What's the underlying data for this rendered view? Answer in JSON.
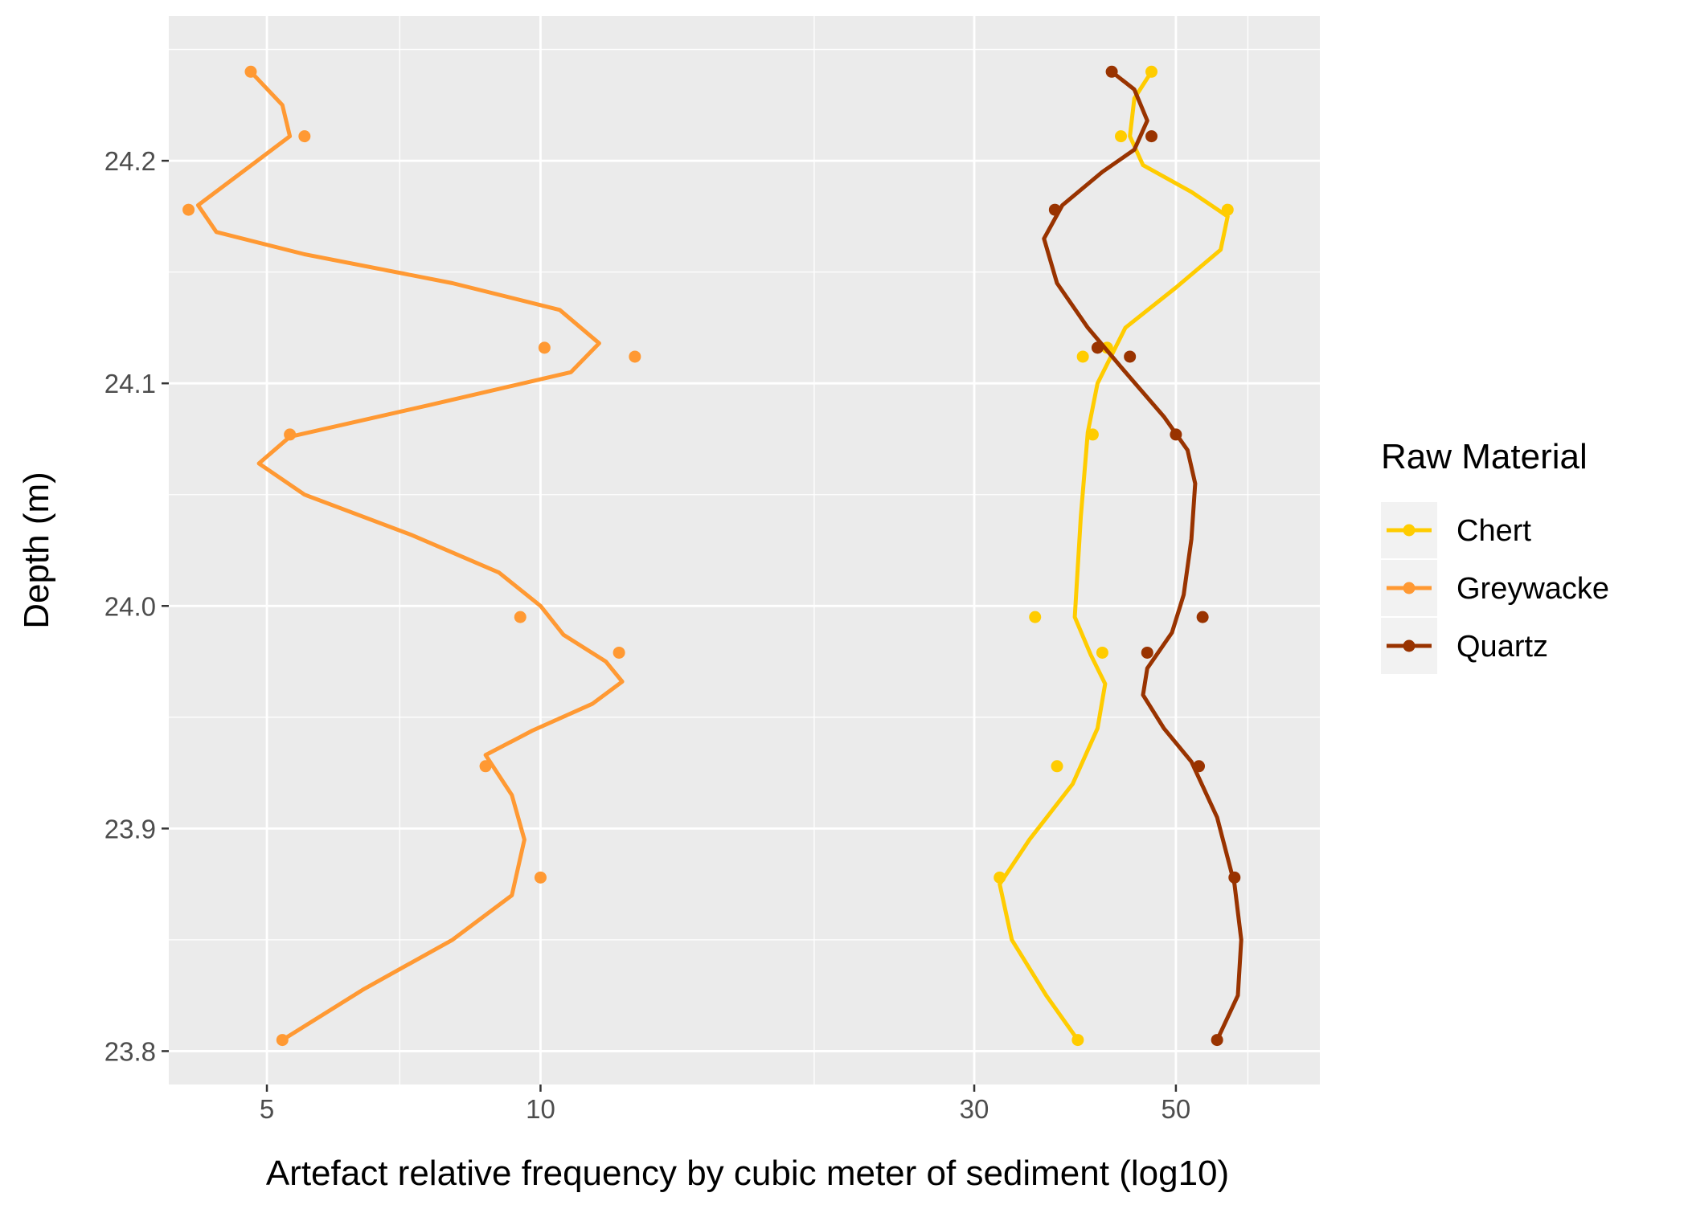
{
  "chart_data": {
    "type": "line",
    "title": "",
    "xlabel": "Artefact relative frequency by cubic meter of sediment (log10)",
    "ylabel": "Depth (m)",
    "x_scale": "log10",
    "xlim": [
      3.9,
      72
    ],
    "ylim": [
      23.785,
      24.265
    ],
    "x_ticks": [
      5,
      10,
      30,
      50
    ],
    "x_tick_labels": [
      "5",
      "10",
      "30",
      "50"
    ],
    "x_minor_grid": [
      7,
      20,
      60
    ],
    "y_ticks": [
      23.8,
      23.9,
      24.0,
      24.1,
      24.2
    ],
    "y_tick_labels": [
      "23.8",
      "23.9",
      "24.0",
      "24.1",
      "24.2"
    ],
    "y_minor_grid": [
      23.85,
      23.95,
      24.05,
      24.15,
      24.25
    ],
    "grid": true,
    "background": "#ebebeb",
    "legend": {
      "title": "Raw Material",
      "position": "right"
    },
    "series": [
      {
        "name": "Chert",
        "color": "#ffcc00",
        "points": [
          [
            47.0,
            24.24
          ],
          [
            43.5,
            24.211
          ],
          [
            57.0,
            24.178
          ],
          [
            39.5,
            24.112
          ],
          [
            42.0,
            24.116
          ],
          [
            40.5,
            24.077
          ],
          [
            35.0,
            23.995
          ],
          [
            41.5,
            23.979
          ],
          [
            37.0,
            23.928
          ],
          [
            32.0,
            23.878
          ],
          [
            39.0,
            23.805
          ]
        ],
        "curve": [
          [
            47.0,
            24.24
          ],
          [
            45.0,
            24.228
          ],
          [
            44.5,
            24.211
          ],
          [
            46.0,
            24.198
          ],
          [
            52.0,
            24.186
          ],
          [
            57.0,
            24.175
          ],
          [
            56.0,
            24.16
          ],
          [
            50.0,
            24.143
          ],
          [
            44.0,
            24.125
          ],
          [
            41.0,
            24.1
          ],
          [
            40.0,
            24.078
          ],
          [
            39.3,
            24.04
          ],
          [
            38.7,
            23.995
          ],
          [
            40.3,
            23.978
          ],
          [
            41.8,
            23.965
          ],
          [
            41.0,
            23.945
          ],
          [
            38.5,
            23.92
          ],
          [
            34.5,
            23.895
          ],
          [
            32.0,
            23.875
          ],
          [
            33.0,
            23.85
          ],
          [
            36.0,
            23.825
          ],
          [
            39.0,
            23.805
          ]
        ]
      },
      {
        "name": "Greywacke",
        "color": "#ff9933",
        "points": [
          [
            4.8,
            24.24
          ],
          [
            5.5,
            24.211
          ],
          [
            4.1,
            24.178
          ],
          [
            10.1,
            24.116
          ],
          [
            12.7,
            24.112
          ],
          [
            5.3,
            24.077
          ],
          [
            9.5,
            23.995
          ],
          [
            12.2,
            23.979
          ],
          [
            8.7,
            23.928
          ],
          [
            10.0,
            23.878
          ],
          [
            5.2,
            23.805
          ]
        ],
        "curve": [
          [
            4.8,
            24.24
          ],
          [
            5.2,
            24.225
          ],
          [
            5.3,
            24.211
          ],
          [
            4.7,
            24.195
          ],
          [
            4.2,
            24.18
          ],
          [
            4.4,
            24.168
          ],
          [
            5.5,
            24.158
          ],
          [
            8.0,
            24.145
          ],
          [
            10.5,
            24.133
          ],
          [
            11.6,
            24.118
          ],
          [
            10.8,
            24.105
          ],
          [
            7.5,
            24.09
          ],
          [
            5.3,
            24.076
          ],
          [
            4.9,
            24.064
          ],
          [
            5.5,
            24.05
          ],
          [
            7.2,
            24.032
          ],
          [
            9.0,
            24.015
          ],
          [
            10.0,
            24.0
          ],
          [
            10.6,
            23.987
          ],
          [
            11.8,
            23.975
          ],
          [
            12.3,
            23.966
          ],
          [
            11.4,
            23.956
          ],
          [
            9.8,
            23.944
          ],
          [
            8.7,
            23.933
          ],
          [
            9.3,
            23.915
          ],
          [
            9.6,
            23.895
          ],
          [
            9.3,
            23.87
          ],
          [
            8.0,
            23.85
          ],
          [
            6.4,
            23.828
          ],
          [
            5.2,
            23.805
          ]
        ]
      },
      {
        "name": "Quartz",
        "color": "#993300",
        "points": [
          [
            42.5,
            24.24
          ],
          [
            47.0,
            24.211
          ],
          [
            36.8,
            24.178
          ],
          [
            41.0,
            24.116
          ],
          [
            44.5,
            24.112
          ],
          [
            50.0,
            24.077
          ],
          [
            53.5,
            23.995
          ],
          [
            46.5,
            23.979
          ],
          [
            53.0,
            23.928
          ],
          [
            58.0,
            23.878
          ],
          [
            55.5,
            23.805
          ]
        ],
        "curve": [
          [
            42.5,
            24.24
          ],
          [
            45.0,
            24.232
          ],
          [
            46.5,
            24.218
          ],
          [
            45.0,
            24.205
          ],
          [
            41.5,
            24.195
          ],
          [
            37.5,
            24.18
          ],
          [
            35.8,
            24.165
          ],
          [
            37.0,
            24.145
          ],
          [
            40.0,
            24.125
          ],
          [
            44.0,
            24.105
          ],
          [
            48.5,
            24.085
          ],
          [
            51.5,
            24.07
          ],
          [
            52.5,
            24.055
          ],
          [
            52.0,
            24.03
          ],
          [
            51.0,
            24.005
          ],
          [
            49.5,
            23.988
          ],
          [
            46.5,
            23.972
          ],
          [
            46.0,
            23.96
          ],
          [
            48.5,
            23.945
          ],
          [
            52.0,
            23.93
          ],
          [
            55.5,
            23.905
          ],
          [
            58.0,
            23.875
          ],
          [
            59.0,
            23.85
          ],
          [
            58.5,
            23.825
          ],
          [
            55.5,
            23.805
          ]
        ]
      }
    ]
  }
}
